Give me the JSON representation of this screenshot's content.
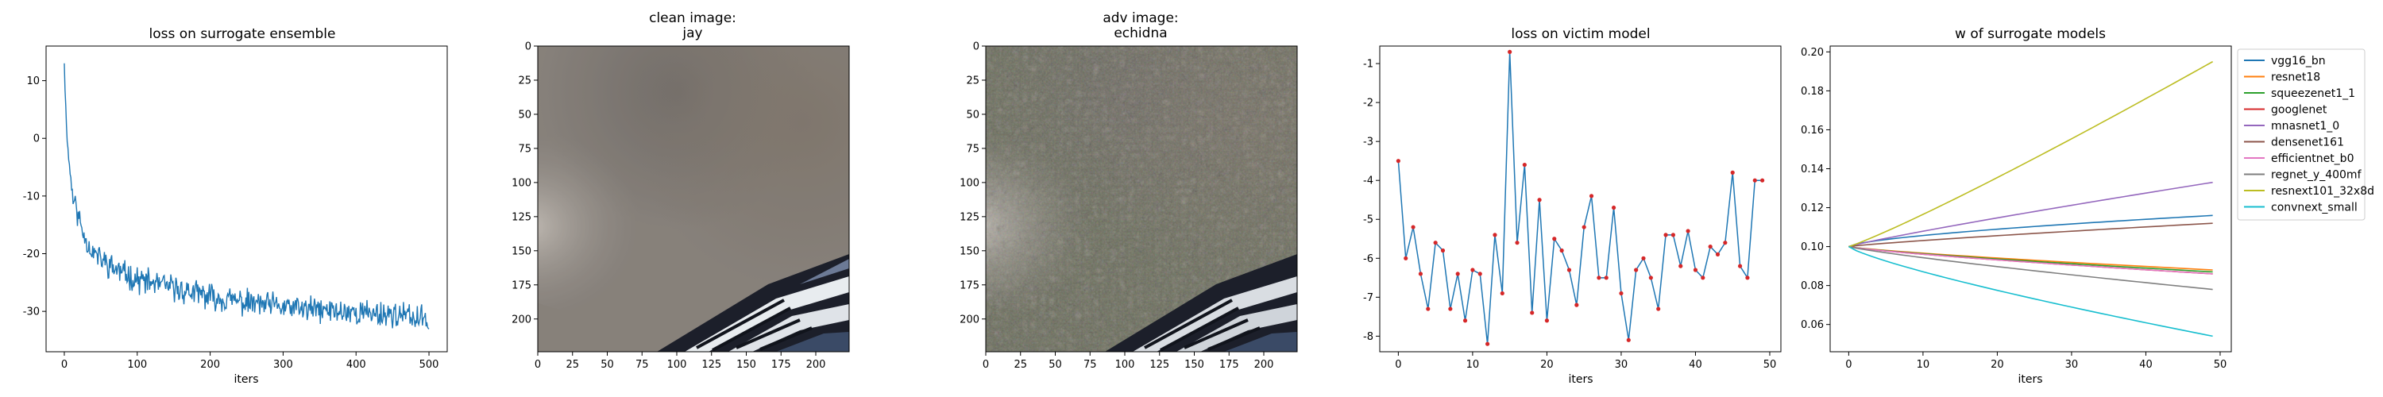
{
  "figure": {
    "panels": [
      {
        "title": "loss on surrogate ensemble",
        "xlabel": "iters"
      },
      {
        "title": "clean image:\njay"
      },
      {
        "title": "adv image:\nechidna"
      },
      {
        "title": "loss on victim model",
        "xlabel": "iters"
      },
      {
        "title": "w of surrogate models",
        "xlabel": "iters"
      }
    ]
  },
  "chart_data": [
    {
      "type": "line",
      "title": "loss on surrogate ensemble",
      "xlabel": "iters",
      "ylabel": "",
      "xlim": [
        -25,
        525
      ],
      "ylim": [
        -37,
        16
      ],
      "xticks": [
        0,
        100,
        200,
        300,
        400,
        500
      ],
      "yticks": [
        10,
        0,
        -10,
        -20,
        -30
      ],
      "color": "#1f77b4",
      "x_range": [
        0,
        500
      ],
      "trend": [
        [
          0,
          13
        ],
        [
          2,
          5
        ],
        [
          5,
          -2
        ],
        [
          8,
          -6
        ],
        [
          12,
          -10
        ],
        [
          18,
          -13
        ],
        [
          25,
          -16
        ],
        [
          35,
          -19
        ],
        [
          50,
          -21
        ],
        [
          75,
          -23
        ],
        [
          100,
          -24.5
        ],
        [
          150,
          -26
        ],
        [
          200,
          -27.5
        ],
        [
          250,
          -28.5
        ],
        [
          300,
          -29.3
        ],
        [
          350,
          -29.8
        ],
        [
          400,
          -30.2
        ],
        [
          450,
          -30.5
        ],
        [
          500,
          -31.5
        ]
      ],
      "noise_amplitude": 1.8,
      "seed": 11
    },
    {
      "type": "image",
      "title": "clean image:\njay",
      "xlim": [
        0,
        224
      ],
      "ylim": [
        224,
        0
      ],
      "xticks": [
        0,
        25,
        50,
        75,
        100,
        125,
        150,
        175,
        200
      ],
      "yticks": [
        0,
        25,
        50,
        75,
        100,
        125,
        150,
        175,
        200
      ]
    },
    {
      "type": "image",
      "title": "adv image:\nechidna",
      "xlim": [
        0,
        224
      ],
      "ylim": [
        224,
        0
      ],
      "xticks": [
        0,
        25,
        50,
        75,
        100,
        125,
        150,
        175,
        200
      ],
      "yticks": [
        0,
        25,
        50,
        75,
        100,
        125,
        150,
        175,
        200
      ]
    },
    {
      "type": "line",
      "title": "loss on victim model",
      "xlabel": "iters",
      "ylabel": "",
      "xlim": [
        -2.5,
        51.5
      ],
      "ylim": [
        -8.4,
        -0.55
      ],
      "xticks": [
        0,
        10,
        20,
        30,
        40,
        50
      ],
      "yticks": [
        -1,
        -2,
        -3,
        -4,
        -5,
        -6,
        -7,
        -8
      ],
      "color": "#1f77b4",
      "marker_color": "#d62728",
      "x": [
        0,
        1,
        2,
        3,
        4,
        5,
        6,
        7,
        8,
        9,
        10,
        11,
        12,
        13,
        14,
        15,
        16,
        17,
        18,
        19,
        20,
        21,
        22,
        23,
        24,
        25,
        26,
        27,
        28,
        29,
        30,
        31,
        32,
        33,
        34,
        35,
        36,
        37,
        38,
        39,
        40,
        41,
        42,
        43,
        44,
        45,
        46,
        47,
        48,
        49
      ],
      "y": [
        -3.5,
        -6.0,
        -5.2,
        -6.4,
        -7.3,
        -5.6,
        -5.8,
        -7.3,
        -6.4,
        -7.6,
        -6.3,
        -6.4,
        -8.2,
        -5.4,
        -6.9,
        -0.7,
        -5.6,
        -3.6,
        -7.4,
        -4.5,
        -7.6,
        -5.5,
        -5.8,
        -6.3,
        -7.2,
        -5.2,
        -4.4,
        -6.5,
        -6.5,
        -4.7,
        -6.9,
        -8.1,
        -6.3,
        -6.0,
        -6.5,
        -7.3,
        -5.4,
        -5.4,
        -6.2,
        -5.3,
        -6.3,
        -6.5,
        -5.7,
        -5.9,
        -5.6,
        -3.8,
        -6.2,
        -6.5,
        -4.0,
        -4.0
      ]
    },
    {
      "type": "line",
      "title": "w of surrogate models",
      "xlabel": "iters",
      "ylabel": "",
      "xlim": [
        -2.5,
        51.5
      ],
      "ylim": [
        0.046,
        0.203
      ],
      "xticks": [
        0,
        10,
        20,
        30,
        40,
        50
      ],
      "yticks": [
        0.06,
        0.08,
        0.1,
        0.12,
        0.14,
        0.16,
        0.18,
        0.2
      ],
      "legend": "outside-right",
      "x_range": [
        0,
        49
      ],
      "start": 0.1,
      "series": [
        {
          "name": "vgg16_bn",
          "color": "#1f77b4",
          "end": 0.116,
          "shape": 0.65
        },
        {
          "name": "resnet18",
          "color": "#ff7f0e",
          "end": 0.088,
          "shape": 0.8
        },
        {
          "name": "squeezenet1_1",
          "color": "#2ca02c",
          "end": 0.087,
          "shape": 0.8
        },
        {
          "name": "googlenet",
          "color": "#d62728",
          "end": 0.086,
          "shape": 0.8
        },
        {
          "name": "mnasnet1_0",
          "color": "#9467bd",
          "end": 0.133,
          "shape": 0.9
        },
        {
          "name": "densenet161",
          "color": "#8c564b",
          "end": 0.112,
          "shape": 0.85
        },
        {
          "name": "efficientnet_b0",
          "color": "#e377c2",
          "end": 0.086,
          "shape": 0.8
        },
        {
          "name": "regnet_y_400mf",
          "color": "#7f7f7f",
          "end": 0.078,
          "shape": 0.85
        },
        {
          "name": "resnext101_32x8d",
          "color": "#bcbd22",
          "end": 0.195,
          "shape": 1.1
        },
        {
          "name": "convnext_small",
          "color": "#17becf",
          "end": 0.054,
          "shape": 0.8
        }
      ]
    }
  ]
}
